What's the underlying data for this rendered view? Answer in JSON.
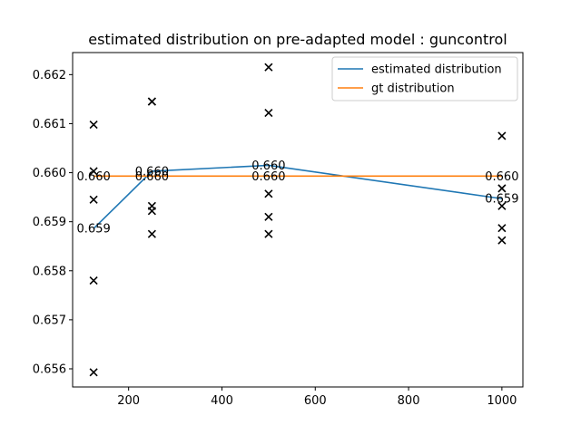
{
  "chart_data": {
    "type": "line",
    "title": "estimated distribution on pre-adapted model : guncontrol",
    "xlabel": "",
    "ylabel": "",
    "xlim": [
      80,
      1045
    ],
    "ylim": [
      0.65563,
      0.66245
    ],
    "x_ticks": [
      200,
      400,
      600,
      800,
      1000
    ],
    "y_ticks": [
      0.656,
      0.657,
      0.658,
      0.659,
      0.66,
      0.661,
      0.662
    ],
    "grid": false,
    "legend_position": "upper right",
    "series": [
      {
        "name": "estimated distribution",
        "color": "#1f77b4",
        "x": [
          125,
          250,
          500,
          1000
        ],
        "y": [
          0.65886,
          0.66003,
          0.66015,
          0.65947
        ],
        "labels": [
          "0.659",
          "0.660",
          "0.660",
          "0.659"
        ]
      },
      {
        "name": "gt distribution",
        "color": "#ff7f0e",
        "x": [
          125,
          250,
          500,
          1000
        ],
        "y": [
          0.65993,
          0.65993,
          0.65993,
          0.65993
        ],
        "labels": [
          "0.660",
          "0.660",
          "0.660",
          "0.660"
        ]
      }
    ],
    "scatter": {
      "marker": "x",
      "color": "#000000",
      "points": [
        [
          125,
          0.65593
        ],
        [
          125,
          0.6578
        ],
        [
          125,
          0.65945
        ],
        [
          125,
          0.66003
        ],
        [
          125,
          0.66098
        ],
        [
          250,
          0.65875
        ],
        [
          250,
          0.65922
        ],
        [
          250,
          0.65932
        ],
        [
          250,
          0.66145
        ],
        [
          250,
          0.66145
        ],
        [
          500,
          0.65875
        ],
        [
          500,
          0.6591
        ],
        [
          500,
          0.65957
        ],
        [
          500,
          0.66122
        ],
        [
          500,
          0.66215
        ],
        [
          1000,
          0.65862
        ],
        [
          1000,
          0.65887
        ],
        [
          1000,
          0.65932
        ],
        [
          1000,
          0.65968
        ],
        [
          1000,
          0.66075
        ]
      ]
    }
  }
}
